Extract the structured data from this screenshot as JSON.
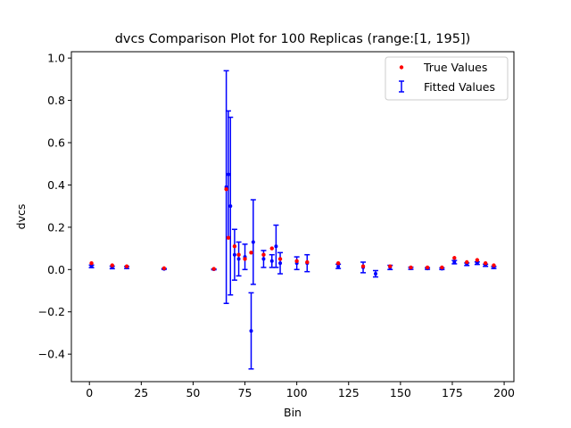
{
  "chart_data": {
    "type": "scatter",
    "title": "dvcs Comparison Plot for 100 Replicas (range:[1, 195])",
    "xlabel": "Bin",
    "ylabel": "dvcs",
    "xlim": [
      -8.7,
      204.7
    ],
    "ylim": [
      -0.53,
      1.03
    ],
    "xticks": [
      0,
      25,
      50,
      75,
      100,
      125,
      150,
      175,
      200
    ],
    "xtick_labels": [
      "0",
      "25",
      "50",
      "75",
      "100",
      "125",
      "150",
      "175",
      "200"
    ],
    "yticks": [
      -0.4,
      -0.2,
      0.0,
      0.2,
      0.4,
      0.6,
      0.8,
      1.0
    ],
    "ytick_labels": [
      "−0.4",
      "−0.2",
      "0.0",
      "0.2",
      "0.4",
      "0.6",
      "0.8",
      "1.0"
    ],
    "grid": false,
    "legend_position": "top-right",
    "legend": [
      {
        "label": "True Values",
        "color": "#ff0000",
        "marker": "dot"
      },
      {
        "label": "Fitted Values",
        "color": "#0000ff",
        "marker": "errorbar"
      }
    ],
    "series": [
      {
        "name": "True Values",
        "color": "#ff0000",
        "x": [
          1,
          11,
          18,
          36,
          60,
          66,
          67,
          70,
          72,
          75,
          78,
          84,
          88,
          92,
          100,
          105,
          120,
          132,
          145,
          155,
          163,
          170,
          176,
          182,
          187,
          191,
          195
        ],
        "y": [
          0.03,
          0.02,
          0.015,
          0.006,
          0.003,
          0.38,
          0.15,
          0.11,
          0.07,
          0.05,
          0.08,
          0.07,
          0.1,
          0.05,
          0.04,
          0.035,
          0.03,
          0.015,
          0.015,
          0.01,
          0.01,
          0.01,
          0.055,
          0.035,
          0.045,
          0.03,
          0.02
        ]
      },
      {
        "name": "Fitted Values",
        "color": "#0000ff",
        "x": [
          1,
          11,
          18,
          36,
          60,
          66,
          67,
          68,
          70,
          72,
          75,
          78,
          79,
          84,
          88,
          90,
          92,
          100,
          105,
          120,
          132,
          138,
          145,
          155,
          163,
          170,
          176,
          182,
          187,
          191,
          195
        ],
        "y": [
          0.015,
          0.01,
          0.01,
          0.003,
          0.001,
          0.39,
          0.45,
          0.3,
          0.07,
          0.05,
          0.06,
          -0.29,
          0.13,
          0.05,
          0.04,
          0.11,
          0.03,
          0.03,
          0.03,
          0.015,
          0.01,
          -0.02,
          0.01,
          0.006,
          0.005,
          0.004,
          0.035,
          0.025,
          0.03,
          0.02,
          0.01
        ],
        "yerr": [
          0.006,
          0.006,
          0.005,
          0.002,
          0.002,
          0.55,
          0.3,
          0.42,
          0.12,
          0.08,
          0.06,
          0.18,
          0.2,
          0.04,
          0.03,
          0.1,
          0.05,
          0.03,
          0.04,
          0.01,
          0.025,
          0.015,
          0.01,
          0.005,
          0.004,
          0.004,
          0.008,
          0.006,
          0.006,
          0.005,
          0.005
        ]
      }
    ]
  }
}
